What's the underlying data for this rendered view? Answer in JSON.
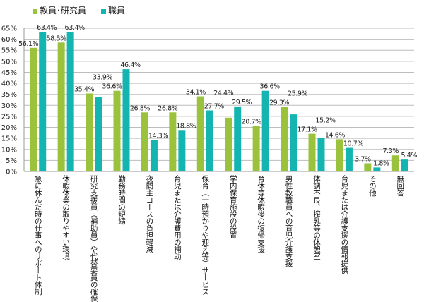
{
  "chart_data": {
    "type": "bar",
    "title": "",
    "xlabel": "",
    "ylabel": "",
    "ylim": [
      0,
      65
    ],
    "yticks": [
      "0%",
      "5%",
      "10%",
      "15%",
      "20%",
      "25%",
      "30%",
      "35%",
      "40%",
      "45%",
      "50%",
      "55%",
      "60%",
      "65%"
    ],
    "grid": true,
    "legend_position": "top",
    "categories": [
      "急に休んだ時の仕事へのサポート体制",
      "休暇休業の取りやすい環境",
      "研究支援員（補助員）や代替要員の確保",
      "勤務時間の短縮",
      "夜間主コースの負担軽減",
      "育児または介護費用の補助",
      "保育（一時預かりや迎え等）サービス",
      "学内保育施設の設置",
      "育休等休暇後の復帰支援",
      "男性教職員への育児介護支援",
      "体調不良、搾乳等の休憩室",
      "育児または介護支援の情報提供",
      "その他",
      "無回答"
    ],
    "series": [
      {
        "name": "教員･研究員",
        "color": "#9bc23c",
        "values": [
          56.1,
          58.5,
          35.4,
          36.6,
          26.8,
          26.8,
          34.1,
          24.4,
          20.7,
          29.3,
          17.1,
          14.6,
          3.7,
          7.3
        ],
        "labels": [
          "56.1%",
          "58.5%",
          "35.4%",
          "36.6%",
          "26.8%",
          "26.8%",
          "34.1%",
          "24.4%",
          "20.7%",
          "29.3%",
          "17.1%",
          "14.6%",
          "3.7%",
          "7.3%"
        ]
      },
      {
        "name": "職員",
        "color": "#14b4b0",
        "values": [
          63.4,
          63.4,
          33.9,
          46.4,
          14.3,
          18.8,
          27.7,
          29.5,
          36.6,
          25.9,
          15.2,
          10.7,
          1.8,
          5.4
        ],
        "labels": [
          "63.4%",
          "63.4%",
          "33.9%",
          "46.4%",
          "14.3%",
          "18.8%",
          "27.7%",
          "29.5%",
          "36.6%",
          "25.9%",
          "15.2%",
          "10.7%",
          "1.8%",
          "5.4%"
        ]
      }
    ]
  }
}
